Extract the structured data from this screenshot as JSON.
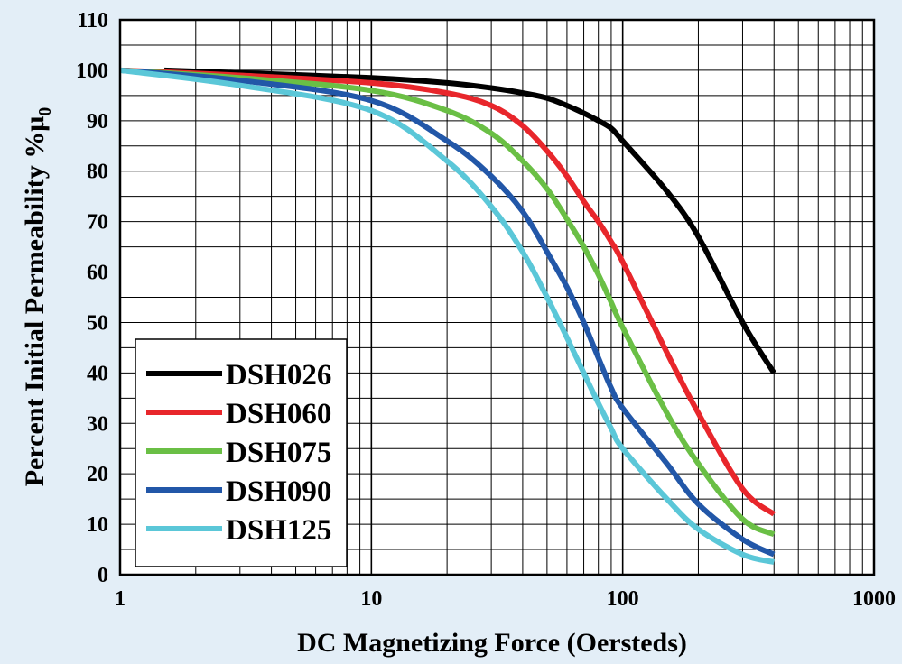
{
  "chart_data": {
    "type": "line",
    "xlabel": "DC Magnetizing Force (Oersteds)",
    "ylabel": "Percent Initial Permeability %μ",
    "ylabel_main": "Percent Initial Permeability %μ",
    "ylabel_sub": "0",
    "x_scale": "log",
    "xlim": [
      1,
      1000
    ],
    "ylim": [
      0,
      110
    ],
    "x_ticks": [
      "1",
      "10",
      "100",
      "1000"
    ],
    "y_ticks": [
      "0",
      "10",
      "20",
      "30",
      "40",
      "50",
      "60",
      "70",
      "80",
      "90",
      "100",
      "110"
    ],
    "grid": true,
    "legend_position": "bottom-left",
    "series": [
      {
        "name": "DSH026",
        "color": "#000000",
        "x": [
          1.5,
          3,
          10,
          20,
          30,
          40,
          50,
          60,
          70,
          80,
          90,
          100,
          150,
          200,
          300,
          400
        ],
        "y": [
          100,
          99.5,
          98.5,
          97.5,
          96.5,
          95.5,
          94.5,
          93,
          91.5,
          90,
          88.5,
          86,
          76,
          67,
          50,
          40
        ]
      },
      {
        "name": "DSH060",
        "color": "#e8262b",
        "x": [
          1,
          3,
          10,
          20,
          30,
          40,
          50,
          60,
          70,
          80,
          90,
          100,
          150,
          200,
          300,
          400
        ],
        "y": [
          100,
          99,
          97.5,
          95.5,
          93,
          89,
          84,
          79,
          74,
          70,
          66,
          62,
          44,
          32,
          17,
          12
        ]
      },
      {
        "name": "DSH075",
        "color": "#6abf45",
        "x": [
          1,
          3,
          10,
          20,
          30,
          40,
          50,
          60,
          70,
          80,
          90,
          100,
          150,
          200,
          300,
          400
        ],
        "y": [
          100,
          98.5,
          96,
          92,
          87.5,
          82,
          76.5,
          70.5,
          65,
          59.5,
          54,
          49,
          32,
          22,
          11,
          8
        ]
      },
      {
        "name": "DSH090",
        "color": "#2257a8",
        "x": [
          1,
          3,
          10,
          20,
          30,
          40,
          50,
          60,
          70,
          80,
          90,
          100,
          150,
          200,
          300,
          400
        ],
        "y": [
          100,
          98,
          94,
          86,
          79,
          72,
          64,
          57,
          50,
          43,
          37,
          33,
          22,
          14,
          7,
          4
        ]
      },
      {
        "name": "DSH125",
        "color": "#5bc7d8",
        "x": [
          1,
          3,
          10,
          20,
          30,
          40,
          50,
          60,
          70,
          80,
          90,
          100,
          150,
          200,
          300,
          400
        ],
        "y": [
          100,
          97,
          92,
          82,
          73,
          64,
          55,
          47,
          40,
          34,
          29,
          25,
          15,
          9,
          4,
          2.5
        ]
      }
    ]
  }
}
